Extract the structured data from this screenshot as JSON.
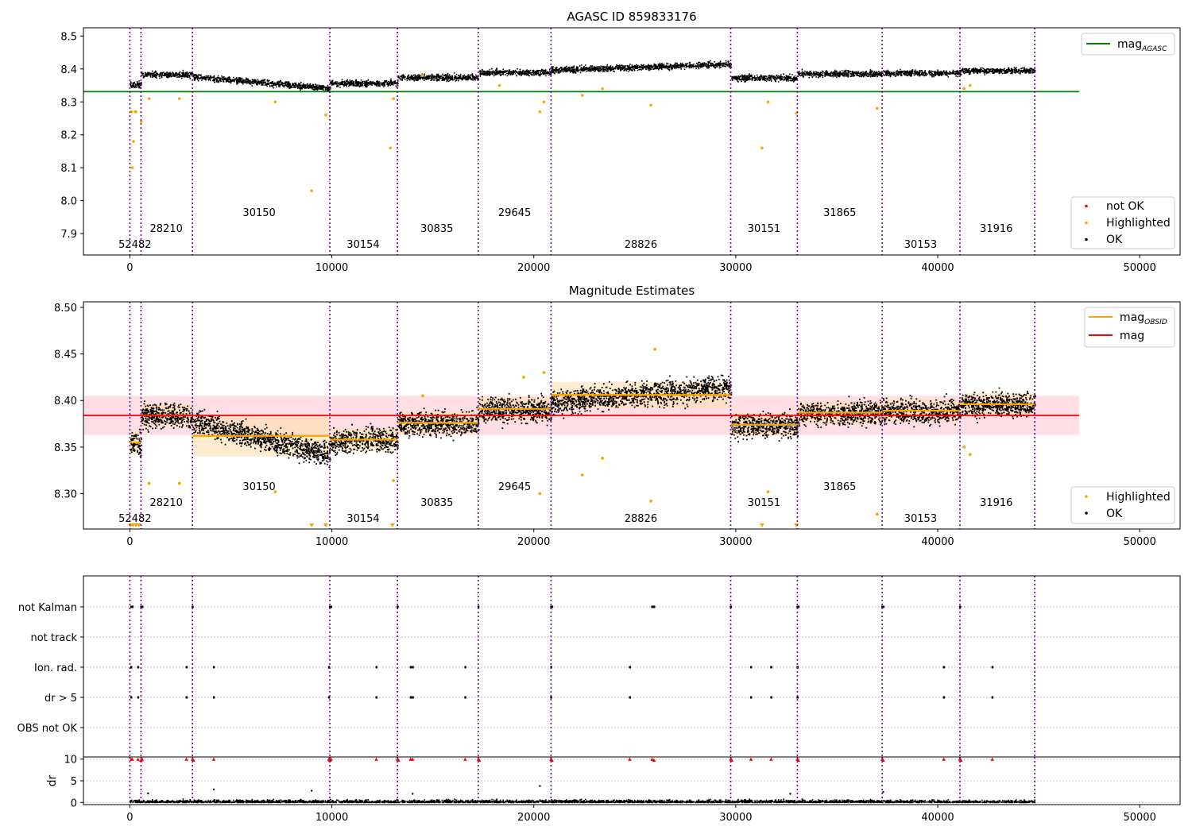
{
  "figure_title": "AGASC ID 859833176",
  "chart_data": [
    {
      "type": "scatter",
      "title": "AGASC ID 859833176",
      "xlim": [
        -2300,
        52000
      ],
      "ylim": [
        7.835,
        8.525
      ],
      "xticks": [
        0,
        10000,
        20000,
        30000,
        40000,
        50000
      ],
      "xtick_labels": [
        "0",
        "10000",
        "20000",
        "30000",
        "40000",
        "50000"
      ],
      "yticks": [
        7.9,
        8.0,
        8.1,
        8.2,
        8.3,
        8.4,
        8.5
      ],
      "ytick_labels": [
        "7.9",
        "8.0",
        "8.1",
        "8.2",
        "8.3",
        "8.4",
        "8.5"
      ],
      "obs_boundaries": [
        0,
        550,
        3100,
        9900,
        13250,
        17250,
        20850,
        29750,
        33050,
        37250,
        41100,
        44800
      ],
      "obsids": [
        {
          "label": "52482",
          "x": 250,
          "row": 2
        },
        {
          "label": "28210",
          "x": 1800,
          "row": 1
        },
        {
          "label": "30150",
          "x": 6400,
          "row": 0
        },
        {
          "label": "30154",
          "x": 11550,
          "row": 2
        },
        {
          "label": "30835",
          "x": 15200,
          "row": 1
        },
        {
          "label": "29645",
          "x": 19050,
          "row": 0
        },
        {
          "label": "28826",
          "x": 25300,
          "row": 2
        },
        {
          "label": "30151",
          "x": 31400,
          "row": 1
        },
        {
          "label": "31865",
          "x": 35150,
          "row": 0
        },
        {
          "label": "30153",
          "x": 39150,
          "row": 2
        },
        {
          "label": "31916",
          "x": 42900,
          "row": 1
        }
      ],
      "segments_mag": [
        8.36,
        8.38,
        8.37,
        8.345,
        8.36,
        8.375,
        8.385,
        8.4,
        8.41,
        8.375,
        8.385,
        8.395,
        8.385,
        8.4
      ],
      "mag_agasc": 8.331,
      "mag_agasc_xrange": [
        -2300,
        47000
      ],
      "legend_upper": [
        {
          "label": "mag",
          "subscript": "AGASC",
          "color": "#008000"
        }
      ],
      "legend_lower": [
        {
          "label": "not OK",
          "color": "#ff0000"
        },
        {
          "label": "Highlighted",
          "color": "#ffa500"
        },
        {
          "label": "OK",
          "color": "#000000"
        }
      ],
      "highlighted_points": [
        [
          80,
          8.27
        ],
        [
          120,
          8.1
        ],
        [
          180,
          8.18
        ],
        [
          260,
          8.27
        ],
        [
          300,
          8.27
        ],
        [
          560,
          8.24
        ],
        [
          950,
          8.31
        ],
        [
          2450,
          8.31
        ],
        [
          7200,
          8.3
        ],
        [
          9000,
          8.03
        ],
        [
          9700,
          8.26
        ],
        [
          12900,
          8.16
        ],
        [
          13050,
          8.31
        ],
        [
          14500,
          8.38
        ],
        [
          18300,
          8.35
        ],
        [
          20300,
          8.27
        ],
        [
          20500,
          8.3
        ],
        [
          22400,
          8.32
        ],
        [
          23400,
          8.34
        ],
        [
          25800,
          8.29
        ],
        [
          31300,
          8.16
        ],
        [
          31600,
          8.3
        ],
        [
          33000,
          8.265
        ],
        [
          37000,
          8.28
        ],
        [
          41300,
          8.34
        ],
        [
          41600,
          8.35
        ]
      ]
    },
    {
      "type": "scatter",
      "title": "Magnitude Estimates",
      "xlim": [
        -2300,
        52000
      ],
      "ylim": [
        8.262,
        8.506
      ],
      "xticks": [
        0,
        10000,
        20000,
        30000,
        40000,
        50000
      ],
      "xtick_labels": [
        "0",
        "10000",
        "20000",
        "30000",
        "40000",
        "50000"
      ],
      "yticks": [
        8.3,
        8.35,
        8.4,
        8.45,
        8.5
      ],
      "ytick_labels": [
        "8.30",
        "8.35",
        "8.40",
        "8.45",
        "8.50"
      ],
      "mag": 8.384,
      "mag_band": [
        8.363,
        8.405
      ],
      "mag_xrange": [
        -2300,
        47000
      ],
      "obsid_mags": [
        {
          "x0": 0,
          "x1": 550,
          "mag": 8.355,
          "lo": 8.342,
          "hi": 8.368
        },
        {
          "x0": 550,
          "x1": 3100,
          "mag": 8.384,
          "lo": 8.372,
          "hi": 8.396
        },
        {
          "x0": 3100,
          "x1": 9900,
          "mag": 8.362,
          "lo": 8.34,
          "hi": 8.384
        },
        {
          "x0": 9900,
          "x1": 13250,
          "mag": 8.358,
          "lo": 8.346,
          "hi": 8.37
        },
        {
          "x0": 13250,
          "x1": 17250,
          "mag": 8.376,
          "lo": 8.364,
          "hi": 8.388
        },
        {
          "x0": 17250,
          "x1": 20850,
          "mag": 8.391,
          "lo": 8.378,
          "hi": 8.404
        },
        {
          "x0": 20850,
          "x1": 29750,
          "mag": 8.406,
          "lo": 8.392,
          "hi": 8.42
        },
        {
          "x0": 29750,
          "x1": 33050,
          "mag": 8.374,
          "lo": 8.362,
          "hi": 8.386
        },
        {
          "x0": 33050,
          "x1": 37250,
          "mag": 8.387,
          "lo": 8.375,
          "hi": 8.399
        },
        {
          "x0": 37250,
          "x1": 41100,
          "mag": 8.389,
          "lo": 8.377,
          "hi": 8.401
        },
        {
          "x0": 41100,
          "x1": 44800,
          "mag": 8.396,
          "lo": 8.384,
          "hi": 8.408
        }
      ],
      "legend_upper": [
        {
          "label": "mag",
          "subscript": "OBSID",
          "color": "#ffa500"
        },
        {
          "label": "mag",
          "subscript": "",
          "color": "#ff0000"
        }
      ],
      "legend_lower": [
        {
          "label": "Highlighted",
          "color": "#ffa500"
        },
        {
          "label": "OK",
          "color": "#000000"
        }
      ],
      "highlighted_points": [
        [
          950,
          8.311
        ],
        [
          2450,
          8.311
        ],
        [
          7200,
          8.302
        ],
        [
          13050,
          8.314
        ],
        [
          14500,
          8.405
        ],
        [
          20300,
          8.3
        ],
        [
          20500,
          8.43
        ],
        [
          22400,
          8.32
        ],
        [
          23400,
          8.338
        ],
        [
          25800,
          8.292
        ],
        [
          31600,
          8.302
        ],
        [
          37000,
          8.278
        ],
        [
          41300,
          8.35
        ],
        [
          41600,
          8.342
        ],
        [
          19500,
          8.425
        ],
        [
          26000,
          8.455
        ]
      ],
      "clipped_points": [
        50,
        150,
        300,
        450,
        9000,
        9700,
        13000,
        31300,
        33000
      ]
    },
    {
      "type": "scatter",
      "title": "",
      "xlim": [
        -2300,
        52000
      ],
      "xticks": [
        0,
        10000,
        20000,
        30000,
        40000,
        50000
      ],
      "xtick_labels": [
        "0",
        "10000",
        "20000",
        "30000",
        "40000",
        "50000"
      ],
      "flag_rows": [
        "not Kalman",
        "not track",
        "Ion. rad.",
        "dr > 5",
        "OBS not OK"
      ],
      "flag_events": {
        "not Kalman": [
          60,
          120,
          550,
          610,
          3100,
          9900,
          9960,
          13250,
          17250,
          20850,
          20900,
          25850,
          25950,
          29750,
          33050,
          33100,
          37250,
          37300,
          41100
        ],
        "not track": [],
        "Ion. rad.": [
          60,
          400,
          2800,
          4150,
          9850,
          12200,
          13900,
          14000,
          16600,
          20850,
          24750,
          30750,
          31750,
          33050,
          40300,
          42700
        ],
        "dr > 5": [
          60,
          400,
          2800,
          4150,
          9850,
          12200,
          13900,
          14000,
          16600,
          20850,
          24750,
          30750,
          31750,
          33050,
          40300,
          42700
        ],
        "OBS not OK": []
      },
      "dr_ylabel": "dr",
      "dr_yticks": [
        0,
        5,
        10
      ],
      "dr_ytick_labels": [
        "0",
        "5",
        "10"
      ],
      "dr_ylim": [
        -0.5,
        10.5
      ],
      "dr_outliers": [
        [
          60,
          10
        ],
        [
          120,
          10
        ],
        [
          400,
          10
        ],
        [
          550,
          9.8
        ],
        [
          610,
          10
        ],
        [
          2800,
          10
        ],
        [
          3100,
          10
        ],
        [
          3150,
          9.8
        ],
        [
          4150,
          10
        ],
        [
          9850,
          10
        ],
        [
          9900,
          9.8
        ],
        [
          9960,
          10
        ],
        [
          12200,
          10
        ],
        [
          13250,
          10
        ],
        [
          13300,
          9.8
        ],
        [
          13900,
          10
        ],
        [
          14000,
          10
        ],
        [
          16600,
          10
        ],
        [
          17250,
          10
        ],
        [
          17300,
          9.8
        ],
        [
          20850,
          10
        ],
        [
          20900,
          9.8
        ],
        [
          24750,
          10
        ],
        [
          25850,
          10
        ],
        [
          25950,
          9.8
        ],
        [
          29750,
          10
        ],
        [
          29800,
          9.8
        ],
        [
          30750,
          10
        ],
        [
          31750,
          10
        ],
        [
          33050,
          10
        ],
        [
          33100,
          9.8
        ],
        [
          37250,
          10
        ],
        [
          37300,
          9.8
        ],
        [
          40300,
          10
        ],
        [
          41100,
          10
        ],
        [
          41150,
          9.8
        ],
        [
          42700,
          10
        ]
      ],
      "dr_scatter_points": [
        [
          900,
          2.1
        ],
        [
          4150,
          3.0
        ],
        [
          9000,
          2.7
        ],
        [
          20300,
          3.8
        ],
        [
          37300,
          2.4
        ],
        [
          32700,
          2.0
        ],
        [
          14000,
          2.0
        ]
      ]
    }
  ]
}
